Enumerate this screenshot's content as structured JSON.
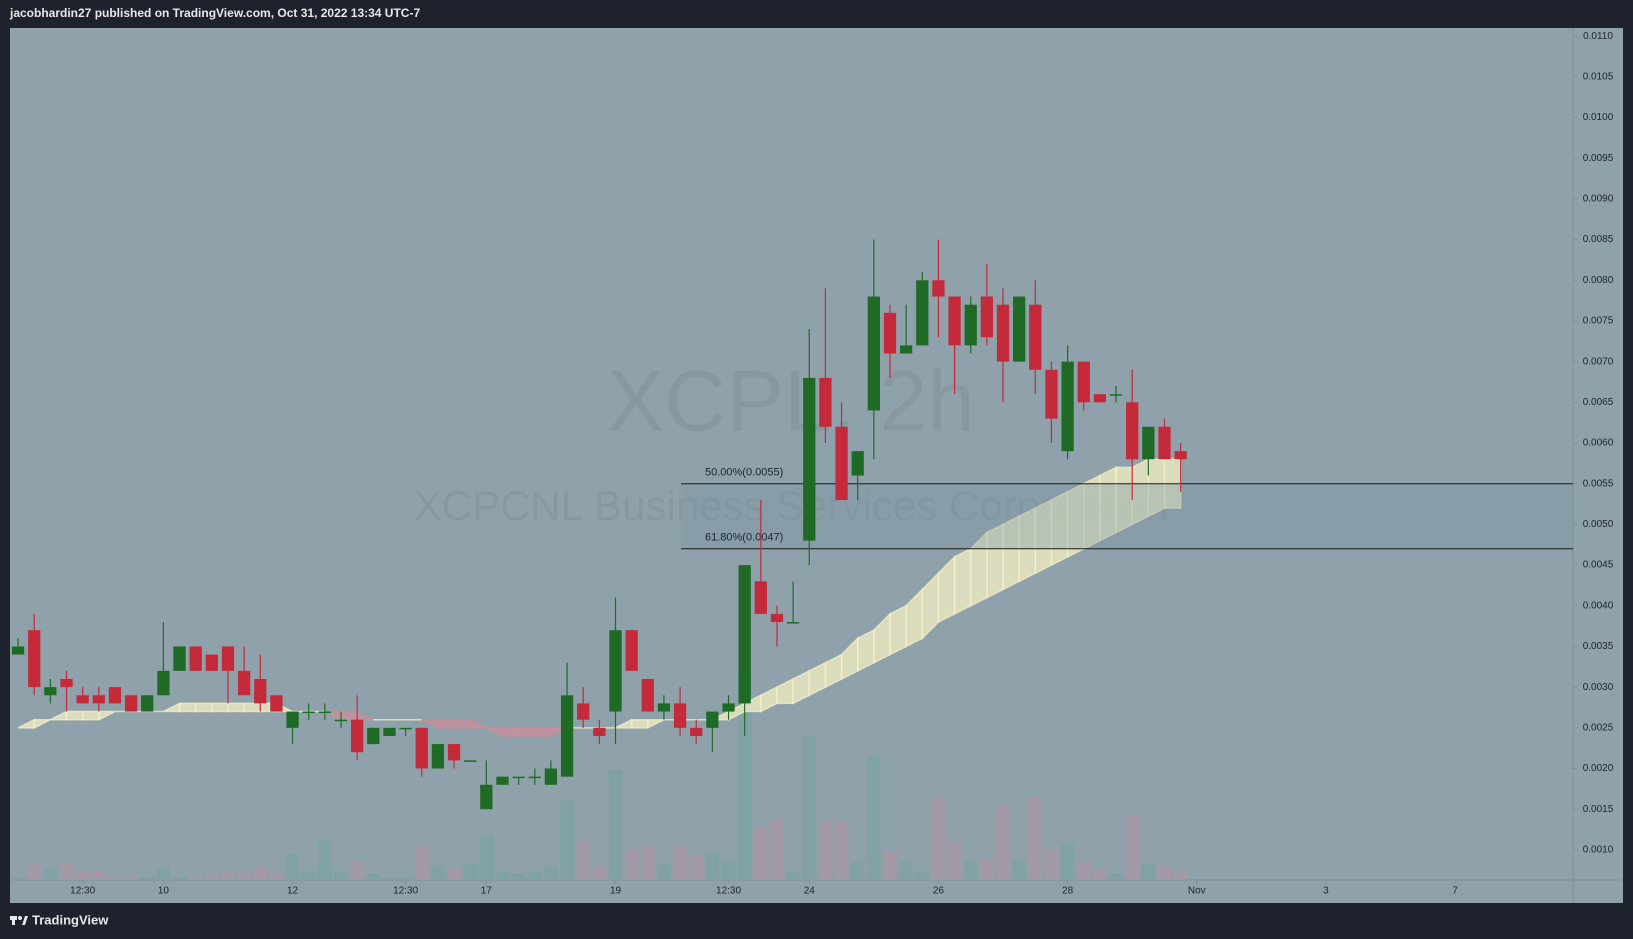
{
  "header": {
    "text": "jacobhardin27 published on TradingView.com, Oct 31, 2022 13:34 UTC-7"
  },
  "footer": {
    "brand": "TradingView"
  },
  "chart_data": {
    "type": "candlestick",
    "title": "XCPL, 2h",
    "subtitle": "XCPCNL Business Services Corporation",
    "up_color": "#1f6b26",
    "down_color": "#c42a3a",
    "volume_up_color": "#7ea2a6",
    "volume_down_color": "#a898a6",
    "band_up_color": "#f4f0c4",
    "band_down_color": "#c98f9a",
    "fib_color": "#1a1a1a",
    "open": [
      0.0034,
      0.0037,
      0.0029,
      0.0031,
      0.0029,
      0.0029,
      0.003,
      0.0029,
      0.0027,
      0.0029,
      0.0032,
      0.0035,
      0.0034,
      0.0035,
      0.0032,
      0.0031,
      0.0029,
      0.0025,
      0.0027,
      0.0027,
      0.0026,
      0.0026,
      0.0023,
      0.0024,
      0.0025,
      0.0025,
      0.002,
      0.0023,
      0.0021,
      0.0015,
      0.0018,
      0.0019,
      0.0019,
      0.0018,
      0.0019,
      0.0028,
      0.0025,
      0.0027,
      0.0037,
      0.0031,
      0.0027,
      0.0028,
      0.0025,
      0.0025,
      0.0027,
      0.0028,
      0.0043,
      0.0039,
      0.0038,
      0.0048,
      0.0068,
      0.0062,
      0.0056,
      0.0064,
      0.0076,
      0.0071,
      0.0072,
      0.008,
      0.0078,
      0.0072,
      0.0078,
      0.0077,
      0.007,
      0.0077,
      0.0069,
      0.0059,
      0.007,
      0.0066,
      0.0066,
      0.0065,
      0.0058,
      0.0062,
      0.0059
    ],
    "high": [
      0.0036,
      0.0039,
      0.0031,
      0.0032,
      0.003,
      0.003,
      0.003,
      0.0029,
      0.0029,
      0.0038,
      0.0035,
      0.0035,
      0.0034,
      0.0035,
      0.0035,
      0.0034,
      0.0029,
      0.0027,
      0.0028,
      0.0028,
      0.0027,
      0.0029,
      0.0025,
      0.0025,
      0.0025,
      0.0025,
      0.0023,
      0.0023,
      0.0021,
      0.0021,
      0.0019,
      0.0019,
      0.002,
      0.0021,
      0.0033,
      0.003,
      0.0026,
      0.0041,
      0.0037,
      0.0031,
      0.0029,
      0.003,
      0.0026,
      0.0027,
      0.0029,
      0.0045,
      0.0053,
      0.004,
      0.0043,
      0.0074,
      0.0079,
      0.0065,
      0.0059,
      0.0085,
      0.0077,
      0.0077,
      0.0081,
      0.0085,
      0.0078,
      0.0078,
      0.0082,
      0.0079,
      0.0078,
      0.008,
      0.007,
      0.0072,
      0.007,
      0.0066,
      0.0067,
      0.0069,
      0.0062,
      0.0063,
      0.006
    ],
    "low": [
      0.0034,
      0.0029,
      0.0028,
      0.0027,
      0.0028,
      0.0027,
      0.0028,
      0.0027,
      0.0027,
      0.0029,
      0.0032,
      0.0032,
      0.0032,
      0.0028,
      0.0029,
      0.0027,
      0.0027,
      0.0023,
      0.0026,
      0.0026,
      0.0025,
      0.0021,
      0.0023,
      0.0024,
      0.0024,
      0.0019,
      0.002,
      0.002,
      0.0021,
      0.0015,
      0.0018,
      0.0018,
      0.0018,
      0.0018,
      0.0019,
      0.0025,
      0.0023,
      0.0023,
      0.0032,
      0.0027,
      0.0026,
      0.0024,
      0.0023,
      0.0022,
      0.0026,
      0.0024,
      0.0039,
      0.0035,
      0.0038,
      0.0045,
      0.006,
      0.0053,
      0.0053,
      0.0058,
      0.0068,
      0.0071,
      0.0072,
      0.0073,
      0.0066,
      0.0071,
      0.0072,
      0.0065,
      0.007,
      0.0066,
      0.006,
      0.0058,
      0.0064,
      0.0065,
      0.0065,
      0.0053,
      0.0056,
      0.0058,
      0.0054
    ],
    "close": [
      0.0035,
      0.003,
      0.003,
      0.003,
      0.0028,
      0.0028,
      0.0028,
      0.0027,
      0.0029,
      0.0032,
      0.0035,
      0.0032,
      0.0032,
      0.0032,
      0.0029,
      0.0028,
      0.0027,
      0.0027,
      0.0027,
      0.0027,
      0.0026,
      0.0022,
      0.0025,
      0.0025,
      0.0025,
      0.002,
      0.0023,
      0.0021,
      0.0021,
      0.0018,
      0.0019,
      0.0019,
      0.0019,
      0.002,
      0.0029,
      0.0026,
      0.0024,
      0.0037,
      0.0032,
      0.0027,
      0.0028,
      0.0025,
      0.0024,
      0.0027,
      0.0028,
      0.0045,
      0.0039,
      0.0038,
      0.0038,
      0.0068,
      0.0062,
      0.0053,
      0.0059,
      0.0078,
      0.0071,
      0.0072,
      0.008,
      0.0078,
      0.0072,
      0.0077,
      0.0073,
      0.007,
      0.0078,
      0.0069,
      0.0063,
      0.007,
      0.0065,
      0.0065,
      0.0066,
      0.0058,
      0.0062,
      0.0058,
      0.0058
    ],
    "volume": [
      3,
      16,
      10,
      16,
      8,
      8,
      3,
      3,
      3,
      12,
      3,
      3,
      6,
      8,
      6,
      12,
      6,
      25,
      8,
      38,
      8,
      18,
      6,
      3,
      3,
      32,
      14,
      12,
      16,
      44,
      8,
      6,
      8,
      14,
      77,
      38,
      14,
      106,
      30,
      32,
      16,
      32,
      24,
      26,
      18,
      203,
      50,
      59,
      8,
      139,
      57,
      57,
      18,
      121,
      28,
      18,
      8,
      79,
      36,
      18,
      20,
      71,
      20,
      80,
      30,
      36,
      18,
      10,
      6,
      62,
      16,
      14,
      8
    ],
    "band": {
      "fast": [
        0.0025,
        0.0026,
        0.0026,
        0.0027,
        0.0027,
        0.0027,
        0.0027,
        0.0027,
        0.0027,
        0.0027,
        0.0028,
        0.0028,
        0.0028,
        0.0028,
        0.0028,
        0.0028,
        0.0028,
        0.0027,
        0.0027,
        0.0027,
        0.0026,
        0.0026,
        0.0026,
        0.0026,
        0.0026,
        0.0026,
        0.0025,
        0.0025,
        0.0025,
        0.0025,
        0.0024,
        0.0024,
        0.0024,
        0.0024,
        0.0025,
        0.0025,
        0.0025,
        0.0025,
        0.0026,
        0.0026,
        0.0026,
        0.0026,
        0.0026,
        0.0026,
        0.0027,
        0.0028,
        0.0029,
        0.003,
        0.0031,
        0.0032,
        0.0033,
        0.0034,
        0.0036,
        0.0037,
        0.0039,
        0.004,
        0.0042,
        0.0044,
        0.0046,
        0.0047,
        0.0049,
        0.005,
        0.0051,
        0.0052,
        0.0053,
        0.0054,
        0.0055,
        0.0056,
        0.0057,
        0.0057,
        0.0058,
        0.0058,
        0.0058
      ],
      "slow": [
        0.0025,
        0.0025,
        0.0026,
        0.0026,
        0.0026,
        0.0026,
        0.0027,
        0.0027,
        0.0027,
        0.0027,
        0.0027,
        0.0027,
        0.0027,
        0.0027,
        0.0027,
        0.0027,
        0.0027,
        0.0027,
        0.0027,
        0.0027,
        0.0027,
        0.0027,
        0.0026,
        0.0026,
        0.0026,
        0.0026,
        0.0026,
        0.0026,
        0.0026,
        0.0025,
        0.0025,
        0.0025,
        0.0025,
        0.0025,
        0.0025,
        0.0025,
        0.0025,
        0.0025,
        0.0025,
        0.0025,
        0.0026,
        0.0026,
        0.0026,
        0.0026,
        0.0026,
        0.0027,
        0.0027,
        0.0028,
        0.0028,
        0.0029,
        0.003,
        0.0031,
        0.0032,
        0.0033,
        0.0034,
        0.0035,
        0.0036,
        0.0038,
        0.0039,
        0.004,
        0.0041,
        0.0042,
        0.0043,
        0.0044,
        0.0045,
        0.0046,
        0.0047,
        0.0048,
        0.0049,
        0.005,
        0.0051,
        0.0052,
        0.0052
      ]
    },
    "fib_levels": [
      {
        "label": "50.00%(0.0055)",
        "value": 0.0055
      },
      {
        "label": "61.80%(0.0047)",
        "value": 0.0047
      }
    ],
    "xlim": [
      -0.5,
      96.3
    ],
    "xticks": [
      {
        "value": 4,
        "label": "12:30"
      },
      {
        "value": 9,
        "label": "10"
      },
      {
        "value": 17,
        "label": "12"
      },
      {
        "value": 24,
        "label": "12:30"
      },
      {
        "value": 29,
        "label": "17"
      },
      {
        "value": 37,
        "label": "19"
      },
      {
        "value": 44,
        "label": "12:30"
      },
      {
        "value": 49,
        "label": "24"
      },
      {
        "value": 57,
        "label": "26"
      },
      {
        "value": 65,
        "label": "28"
      },
      {
        "value": 73,
        "label": "Nov"
      },
      {
        "value": 81,
        "label": "3"
      },
      {
        "value": 89,
        "label": "7"
      }
    ],
    "ylim": [
      0.00063,
      0.0111
    ],
    "yticks": [
      {
        "value": 0.001,
        "label": "0.0010"
      },
      {
        "value": 0.0015,
        "label": "0.0015"
      },
      {
        "value": 0.002,
        "label": "0.0020"
      },
      {
        "value": 0.0025,
        "label": "0.0025"
      },
      {
        "value": 0.003,
        "label": "0.0030"
      },
      {
        "value": 0.0035,
        "label": "0.0035"
      },
      {
        "value": 0.004,
        "label": "0.0040"
      },
      {
        "value": 0.0045,
        "label": "0.0045"
      },
      {
        "value": 0.005,
        "label": "0.0050"
      },
      {
        "value": 0.0055,
        "label": "0.0055"
      },
      {
        "value": 0.006,
        "label": "0.0060"
      },
      {
        "value": 0.0065,
        "label": "0.0065"
      },
      {
        "value": 0.007,
        "label": "0.0070"
      },
      {
        "value": 0.0075,
        "label": "0.0075"
      },
      {
        "value": 0.008,
        "label": "0.0080"
      },
      {
        "value": 0.0085,
        "label": "0.0085"
      },
      {
        "value": 0.009,
        "label": "0.0090"
      },
      {
        "value": 0.0095,
        "label": "0.0095"
      },
      {
        "value": 0.01,
        "label": "0.0100"
      },
      {
        "value": 0.0105,
        "label": "0.0105"
      },
      {
        "value": 0.011,
        "label": "0.0110"
      }
    ]
  }
}
